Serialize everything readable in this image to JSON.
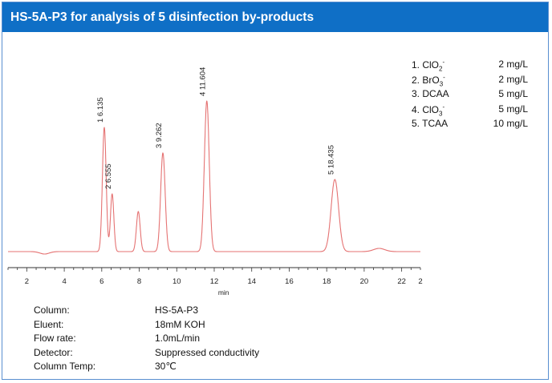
{
  "title": "HS-5A-P3 for analysis of 5 disinfection by-products",
  "colors": {
    "title_bg": "#0f6fc6",
    "trace": "#e57373",
    "axis": "#333333"
  },
  "chart_data": {
    "type": "line",
    "xlabel": "min",
    "xlim": [
      1,
      23
    ],
    "x_ticks": [
      "2",
      "4",
      "6",
      "8",
      "10",
      "12",
      "14",
      "16",
      "18",
      "20",
      "22",
      "2"
    ],
    "grid": false,
    "peaks": [
      {
        "label": "1  6.135",
        "time": 6.135,
        "height": 155,
        "width": 0.1
      },
      {
        "label": "2  6.555",
        "time": 6.555,
        "height": 72,
        "width": 0.09
      },
      {
        "label": "",
        "time": 7.95,
        "height": 50,
        "width": 0.1
      },
      {
        "label": "3  9.262",
        "time": 9.262,
        "height": 123,
        "width": 0.12
      },
      {
        "label": "4  11.604",
        "time": 11.604,
        "height": 188,
        "width": 0.13
      },
      {
        "label": "5  18.435",
        "time": 18.435,
        "height": 90,
        "width": 0.2
      },
      {
        "label": "",
        "time": 20.8,
        "height": 4,
        "width": 0.3
      }
    ]
  },
  "legend": [
    {
      "prefix": "1. ClO",
      "sub": "2",
      "sup": "-",
      "conc": "2 mg/L"
    },
    {
      "prefix": "2. BrO",
      "sub": "3",
      "sup": "-",
      "conc": "2 mg/L"
    },
    {
      "prefix": "3. DCAA",
      "sub": "",
      "sup": "",
      "conc": "5 mg/L"
    },
    {
      "prefix": "4. ClO",
      "sub": "3",
      "sup": "-",
      "conc": "5 mg/L"
    },
    {
      "prefix": "5. TCAA",
      "sub": "",
      "sup": "",
      "conc": "10 mg/L"
    }
  ],
  "conditions": [
    {
      "label": "Column:",
      "value": "HS-5A-P3"
    },
    {
      "label": "Eluent:",
      "value": "18mM KOH"
    },
    {
      "label": "Flow rate:",
      "value": "1.0mL/min"
    },
    {
      "label": "Detector:",
      "value": "Suppressed conductivity"
    },
    {
      "label": "Column Temp:",
      "value": "30℃"
    }
  ]
}
